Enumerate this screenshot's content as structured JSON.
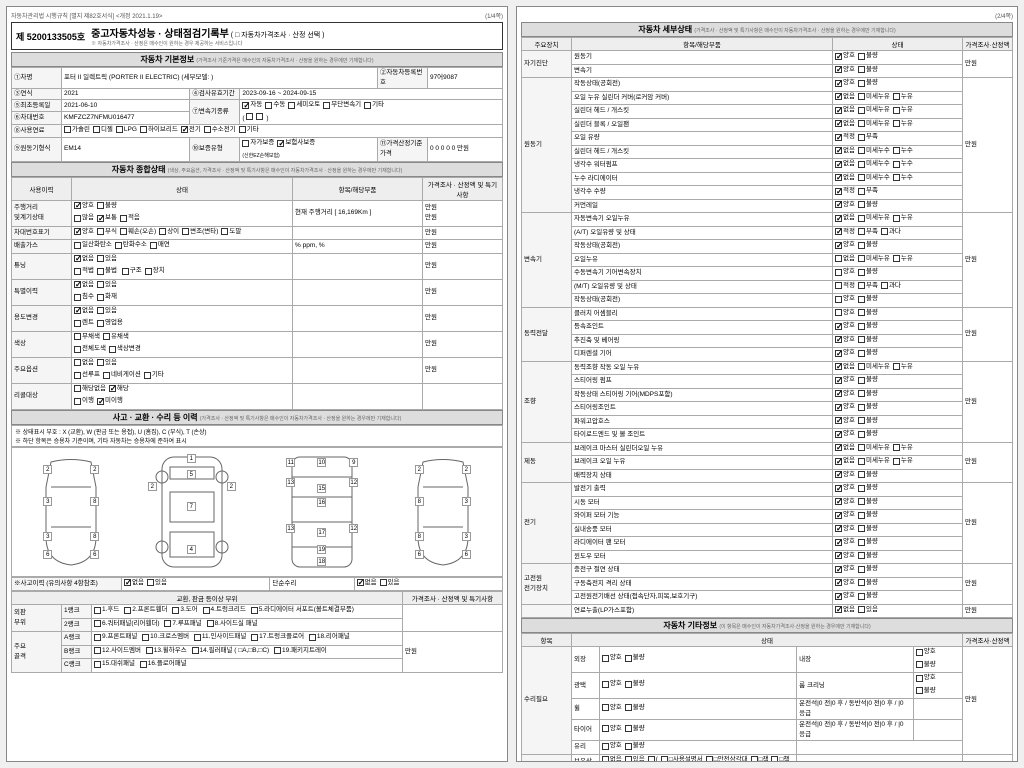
{
  "meta": {
    "regulation": "자동차관리법 시행규칙 [별지 제82호서식] <개정 2021.1.19>",
    "page1": "(1/4쪽)",
    "page2": "(2/4쪽)"
  },
  "doc": {
    "number": "제 5200133505호",
    "title": "중고자동차성능 · 상태점검기록부",
    "subtitle": "( □ 자동차가격조사 · 산정 선택 )",
    "note": "※ 자동차가격조사 · 산정은 매수인이 원하는 경우 제공하는 서비스입니다"
  },
  "basicHdr": "자동차 기본정보",
  "basicSub": "(가격조사 기준가격은 매수인의 자동차가격조사 · 산정을 원하는 경우에만 기재합니다)",
  "basic": {
    "r1l": "①차명",
    "r1v": "포터 II 일렉트릭 (PORTER II ELECTRIC) (세부모델: )",
    "r1r": "②자동차등록번호",
    "r1rv": "97어9087",
    "r2l": "③연식",
    "r2v": "2021",
    "r2c": "④검사유효기간",
    "r2cv": "2023-09-16 ~ 2024-09-15",
    "r3l": "⑤최초등록일",
    "r3v": "2021-06-10",
    "r3r": "⑦변속기종류",
    "r4l": "⑥차대번호",
    "r4v": "KMFZCZ7NFMU016477",
    "r5l": "⑧사용연료",
    "r6l": "⑨원동기형식",
    "r6v": "EM14",
    "r6a": "⑩보증유형",
    "r6b": "⑪가격산정기준가격"
  },
  "fuel": [
    "가솔린",
    "디젤",
    "LPG",
    "하이브리드",
    "전기",
    "수소전기",
    "기타"
  ],
  "trans": [
    "자동",
    "수동",
    "세미오토",
    "무단변속기",
    "기타"
  ],
  "warranty": [
    "자가보증",
    "보험사보증"
  ],
  "warrantyNote": "(신한EZ손해보험)",
  "price": "0 0 0 0 0 만원",
  "overallHdr": "자동차 종합상태",
  "overallSub": "(색상, 주요옵션, 가격조사 · 산정액 및 특기사항은 매수인이 자동차가격조사 · 산정을 원하는 경우에만 기재합니다)",
  "cols": [
    "사용이력",
    "상태",
    "항목/해당부품",
    "가격조사 · 산정액 및 특기사항"
  ],
  "overall": [
    {
      "l": "주행거리\n및계기상태",
      "s": [
        "양호",
        "불량"
      ],
      "sc": [
        1,
        0
      ],
      "s2": [
        "많음",
        "보통",
        "적음"
      ],
      "sc2": [
        0,
        1,
        0
      ],
      "extra": "현재 주행거리 [ 16,169Km ]",
      "p": "만원\n만원"
    },
    {
      "l": "차대번호표기",
      "s": [
        "양호",
        "부식",
        "훼손(오손)",
        "상이",
        "변조(변타)",
        "도말"
      ],
      "sc": [
        1,
        0,
        0,
        0,
        0,
        0
      ],
      "p": "만원"
    },
    {
      "l": "배출가스",
      "s": [
        "일산화탄소",
        "탄화수소",
        "매연"
      ],
      "sc": [
        0,
        0,
        0
      ],
      "extra": "%      ppm,     %",
      "p": "만원"
    },
    {
      "l": "튜닝",
      "s": [
        "없음",
        "있음"
      ],
      "sc": [
        1,
        0
      ],
      "s2": [
        "적법",
        "불법"
      ],
      "sc2": [
        0,
        0
      ],
      "s3": [
        "구조",
        "장치"
      ],
      "sc3": [
        0,
        0
      ],
      "p": "만원"
    },
    {
      "l": "특별이력",
      "s": [
        "없음",
        "있음"
      ],
      "sc": [
        1,
        0
      ],
      "s2": [
        "침수",
        "화재"
      ],
      "sc2": [
        0,
        0
      ],
      "p": "만원"
    },
    {
      "l": "용도변경",
      "s": [
        "없음",
        "있음"
      ],
      "sc": [
        1,
        0
      ],
      "s2": [
        "렌트",
        "영업용"
      ],
      "sc2": [
        0,
        0
      ],
      "p": "만원"
    },
    {
      "l": "색상",
      "s": [
        "무채색",
        "유채색"
      ],
      "sc": [
        0,
        0
      ],
      "s2": [
        "전체도색",
        "색상변경"
      ],
      "sc2": [
        0,
        0
      ],
      "p": "만원"
    },
    {
      "l": "주요옵션",
      "s": [
        "없음",
        "있음"
      ],
      "sc": [
        0,
        0
      ],
      "s2": [
        "선루프",
        "네비게이션",
        "기타"
      ],
      "sc2": [
        0,
        0,
        0
      ],
      "p": "만원"
    },
    {
      "l": "리콜대상",
      "s": [
        "해당없음",
        "해당"
      ],
      "sc": [
        0,
        1
      ],
      "s2": [
        "이행",
        "미이행"
      ],
      "sc2": [
        0,
        1
      ],
      "p": ""
    }
  ],
  "accHdr": "사고 · 교환 · 수리 등 이력",
  "accSub": "(가격조사 · 산정액 및 특기사항은 매수인이 자동차가격조사 · 산정을 원하는 경우에만 기재합니다)",
  "accNote1": "※ 상태표시 부호 : X (교환), W (판금 또는 용접), U (흠집), C (부식), T (손상)",
  "accNote2": "※ 하단 항목은 승용차 기준이며, 기타 자동차는 승용차에 준하여 표시",
  "accRow": {
    "l": "※사고이력 (유의사항 4항참조)",
    "a": [
      "없음",
      "있음"
    ],
    "ac": [
      1,
      0
    ],
    "b": "단순수리",
    "c": [
      "없음",
      "있음"
    ],
    "cc": [
      1,
      0
    ]
  },
  "panelHdr": "교환, 판금 등이상 부위",
  "panelPrice": "가격조사 · 산정액 및 특기사항",
  "panels": {
    "out": {
      "lbl": "외판\n부위",
      "rows": [
        {
          "r": "1랭크",
          "items": [
            "1.후드",
            "2.프론트휀더",
            "3.도어",
            "4.트렁크리드",
            "5.라디에이터 서포트(볼트체결부품)"
          ]
        },
        {
          "r": "2랭크",
          "items": [
            "6.쿼터패널(리어휀더)",
            "7.루프패널",
            "8.사이드실 패널"
          ]
        }
      ]
    },
    "frame": {
      "lbl": "주요\n골격",
      "rows": [
        {
          "r": "A랭크",
          "items": [
            "9.프론트패널",
            "10.크로스멤버",
            "11.인사이드패널",
            "17.트렁크플로어",
            "18.리어패널"
          ]
        },
        {
          "r": "B랭크",
          "items": [
            "12.사이드멤버",
            "13.휠하우스",
            "14.필러패널 ( □A,□B,□C)",
            "19.패키지트레이"
          ]
        },
        {
          "r": "C랭크",
          "items": [
            "15.대쉬패널",
            "16.플로어패널"
          ]
        }
      ],
      "p": "만원"
    }
  },
  "detailHdr": "자동차 세부상태",
  "detailSub": "(가격조사 · 산정액 및 특기사항은 매수인이 자동차가격조사 · 산정을 원하는 경우에만 기재합니다)",
  "detailCols": [
    "주요장치",
    "항목/해당부품",
    "상태",
    "가격조사·산정액"
  ],
  "detail": [
    {
      "g": "자기진단",
      "rows": [
        [
          "원동기",
          "양호|1 불량|0"
        ],
        [
          "변속기",
          "양호|1 불량|0"
        ]
      ],
      "p": "만원"
    },
    {
      "g": "원동기",
      "rows": [
        [
          "작동상태(공회전)",
          "양호|1 불량|0"
        ],
        [
          "오일 누유  실린더 커버(로커암 커버)",
          "없음|1 미세누유|0 누유|0"
        ],
        [
          "          실린더 헤드 / 개스킷",
          "없음|1 미세누유|0 누유|0"
        ],
        [
          "          실린더 블록 / 오일팬",
          "없음|1 미세누유|0 누유|0"
        ],
        [
          "오일 유량",
          "적정|1 부족|0"
        ],
        [
          "          실린더 헤드 / 개스킷",
          "없음|1 미세누수|0 누수|0"
        ],
        [
          "냉각수     워터펌프",
          "없음|1 미세누수|0 누수|0"
        ],
        [
          "누수       라디에이터",
          "없음|1 미세누수|0 누수|0"
        ],
        [
          "          냉각수 수량",
          "적정|1 부족|0"
        ],
        [
          "커먼레일",
          "양호|1 불량|0"
        ]
      ],
      "p": "만원"
    },
    {
      "g": "변속기",
      "rows": [
        [
          "자동변속기  오일누유",
          "없음|1 미세누유|0 누유|0"
        ],
        [
          "(A/T)      오일유량 및 상태",
          "적정|1 부족|0 과다|0"
        ],
        [
          "           작동상태(공회전)",
          "양호|1 불량|0"
        ],
        [
          "           오일누유",
          "없음|0 미세누유|0 누유|0"
        ],
        [
          "수동변속기  기어변속장치",
          "양호|0 불량|0"
        ],
        [
          "(M/T)      오일유량 및 상태",
          "적정|0 부족|0 과다|0"
        ],
        [
          "           작동상태(공회전)",
          "양호|0 불량|0"
        ]
      ],
      "p": "만원"
    },
    {
      "g": "동력전달",
      "rows": [
        [
          "클러치 어셈블리",
          "양호|0 불량|0"
        ],
        [
          "등속죠인트",
          "양호|1 불량|0"
        ],
        [
          "추진축 및 베어링",
          "양호|1 불량|0"
        ],
        [
          "디퍼렌셜 기어",
          "양호|1 불량|0"
        ]
      ],
      "p": "만원"
    },
    {
      "g": "조향",
      "rows": [
        [
          "동력조향 작동 오일 누유",
          "없음|1 미세누유|0 누유|0"
        ],
        [
          "           스티어링 펌프",
          "양호|1 불량|0"
        ],
        [
          "작동상태    스티어링 기어(MDPS포함)",
          "양호|1 불량|0"
        ],
        [
          "           스티어링조인트",
          "양호|1 불량|0"
        ],
        [
          "           파워고압호스",
          "양호|1 불량|0"
        ],
        [
          "           타이로드엔드 및 볼 조인트",
          "양호|1 불량|0"
        ]
      ],
      "p": "만원"
    },
    {
      "g": "제동",
      "rows": [
        [
          "브레이크 마스터 실린더오일 누유",
          "없음|1 미세누유|0 누유|0"
        ],
        [
          "브레이크 오일 누유",
          "없음|1 미세누유|0 누유|0"
        ],
        [
          "배력장치 상태",
          "양호|1 불량|0"
        ]
      ],
      "p": "만원"
    },
    {
      "g": "전기",
      "rows": [
        [
          "발전기 출력",
          "양호|1 불량|0"
        ],
        [
          "시동 모터",
          "양호|1 불량|0"
        ],
        [
          "와이퍼 모터 기능",
          "양호|1 불량|0"
        ],
        [
          "실내송풍 모터",
          "양호|1 불량|0"
        ],
        [
          "라디에이터 팬 모터",
          "양호|1 불량|0"
        ],
        [
          "윈도우 모터",
          "양호|1 불량|0"
        ]
      ],
      "p": "만원"
    },
    {
      "g": "고전원\n전기장치",
      "rows": [
        [
          "충전구 절연 상태",
          "양호|1 불량|0"
        ],
        [
          "구동축전지 격리 상태",
          "양호|1 불량|0"
        ],
        [
          "고전원전기배선 상태(접속단자,피복,보호기구)",
          "양호|1 불량|0"
        ]
      ],
      "p": "만원"
    },
    {
      "g": "",
      "rows": [
        [
          "연료누출(LP가스포함)",
          "없음|1 있음|0"
        ]
      ],
      "p": "만원"
    }
  ],
  "otherHdr": "자동차 기타정보",
  "otherSub": "(이 항목은 매수인이 자동차가격조사·산정을 원하는 경우에만 기재합니다)",
  "other": [
    {
      "g": "수리필요",
      "rows": [
        [
          "외장",
          "양호|0 불량|0",
          "내장",
          "양호|0 불량|0"
        ],
        [
          "광택",
          "양호|0 불량|0",
          "룸 크리닝",
          "양호|0 불량|0"
        ],
        [
          "휠",
          "양호|0 불량|0",
          "운전석|0 전|0 후 / 동반석|0 전|0 후 / |0 응급",
          ""
        ],
        [
          "타이어",
          "양호|0 불량|0",
          "운전석|0 전|0 후 / 동반석|0 전|0 후 / |0 응급",
          ""
        ],
        [
          "유리",
          "양호|0 불량|0",
          "",
          ""
        ]
      ],
      "p": "만원"
    },
    {
      "g": "기본품목",
      "rows": [
        [
          "보유상태",
          "없음|0 있음|0  ( □사용설명서 □안전삼각대 □잭 □책 )",
          "",
          ""
        ]
      ]
    }
  ]
}
